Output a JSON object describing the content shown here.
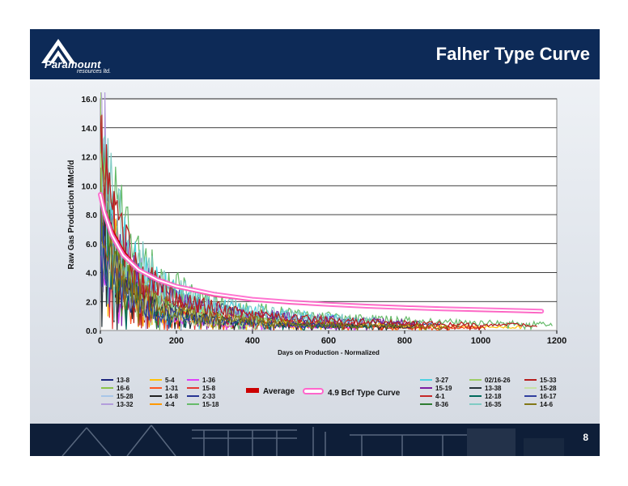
{
  "slide": {
    "title": "Falher Type Curve",
    "page_number": "8",
    "logo_text": "Paramount",
    "logo_subtext": "resources ltd."
  },
  "colors": {
    "header_bg": "#0d2a57",
    "footer_bg": "#0e1e38",
    "average": "#cc0000",
    "type_curve": "#ff66cc"
  },
  "chart_data": {
    "type": "line",
    "xlabel": "Days on Production - Normalized",
    "ylabel": "Raw Gas Production MMcf/d",
    "xlim": [
      0,
      1200
    ],
    "ylim": [
      0,
      16.0
    ],
    "x_ticks": [
      "0",
      "200",
      "400",
      "600",
      "800",
      "1000",
      "1200"
    ],
    "y_ticks": [
      "0.0",
      "2.0",
      "4.0",
      "6.0",
      "8.0",
      "10.0",
      "12.0",
      "14.0",
      "16.0"
    ],
    "grid": "horizontal",
    "legend_position": "bottom",
    "highlight_series": [
      {
        "name": "Average",
        "color": "#cc0000",
        "x": [
          0,
          10,
          30,
          60,
          100,
          150,
          200,
          300,
          400,
          500,
          600,
          700,
          800,
          900,
          1000,
          1100,
          1160
        ],
        "y": [
          9.5,
          8.5,
          7.0,
          5.5,
          4.2,
          3.5,
          3.0,
          2.4,
          2.1,
          1.9,
          1.8,
          1.7,
          1.6,
          1.5,
          1.4,
          1.35,
          1.3
        ]
      },
      {
        "name": "4.9 Bcf Type Curve",
        "color": "#ff66cc",
        "x": [
          0,
          10,
          30,
          60,
          100,
          150,
          200,
          300,
          400,
          500,
          600,
          700,
          800,
          900,
          1000,
          1100,
          1160
        ],
        "y": [
          9.4,
          8.2,
          6.6,
          5.2,
          4.2,
          3.5,
          3.05,
          2.5,
          2.15,
          1.95,
          1.8,
          1.68,
          1.58,
          1.5,
          1.43,
          1.37,
          1.33
        ]
      }
    ],
    "well_series": [
      {
        "name": "13-8",
        "color": "#1a237e"
      },
      {
        "name": "16-6",
        "color": "#8bc34a"
      },
      {
        "name": "15-28",
        "color": "#a8c6e8"
      },
      {
        "name": "13-32",
        "color": "#b39ddb"
      },
      {
        "name": "5-4",
        "color": "#ffc107"
      },
      {
        "name": "1-31",
        "color": "#ff5722"
      },
      {
        "name": "14-8",
        "color": "#212121"
      },
      {
        "name": "4-4",
        "color": "#ff9800"
      },
      {
        "name": "1-36",
        "color": "#e040fb"
      },
      {
        "name": "15-8",
        "color": "#e53935"
      },
      {
        "name": "2-33",
        "color": "#283593"
      },
      {
        "name": "15-18",
        "color": "#66bb6a"
      },
      {
        "name": "3-27",
        "color": "#4dd0e1"
      },
      {
        "name": "15-19",
        "color": "#7b1fa2"
      },
      {
        "name": "4-1",
        "color": "#c62828"
      },
      {
        "name": "8-36",
        "color": "#2e7d32"
      },
      {
        "name": "02/16-26",
        "color": "#9ccc65"
      },
      {
        "name": "13-38",
        "color": "#263238"
      },
      {
        "name": "12-18",
        "color": "#00695c"
      },
      {
        "name": "16-35",
        "color": "#80cbc4"
      },
      {
        "name": "15-33",
        "color": "#b71c1c"
      },
      {
        "name": "15-28",
        "color": "#c5e1a5"
      },
      {
        "name": "16-17",
        "color": "#303f9f"
      },
      {
        "name": "14-6",
        "color": "#827717"
      }
    ]
  }
}
